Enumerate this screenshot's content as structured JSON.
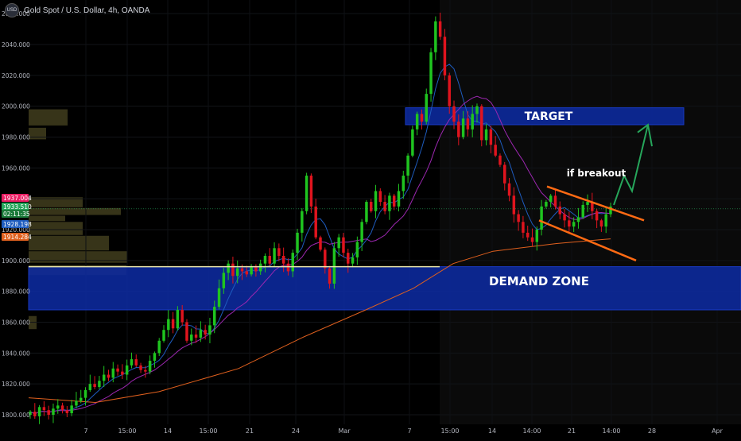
{
  "header": {
    "symbol_title": "Gold Spot / U.S. Dollar, 4h, OANDA",
    "currency_badge": "USD"
  },
  "price_labels": {
    "label_1": "1937.004",
    "label_2": "1933.510",
    "label_3": "02:11:35",
    "label_4": "1928.198",
    "label_5": "1914.284"
  },
  "colors": {
    "background": "#000000",
    "candle_up": "#1fc41f",
    "candle_down": "#e0141e",
    "ma_fast": "#1e5cbf",
    "ma_mid": "#9c27b0",
    "ma_slow": "#e0601e",
    "zone_fill": "#0d2a9c",
    "channel": "#ff6a13",
    "arrow": "#26a65b",
    "volume_profile": "#3d3a1c"
  },
  "annotations": {
    "target": "TARGET",
    "demand_zone": "DEMAND ZONE",
    "if_breakout": "if breakout"
  },
  "chart_data": {
    "type": "candlestick",
    "title": "Gold Spot / U.S. Dollar, 4h, OANDA",
    "ylim": [
      1795,
      2065
    ],
    "y_ticks": [
      1800,
      1820,
      1840,
      1860,
      1880,
      1900,
      1920,
      1940,
      1960,
      1980,
      2000,
      2020,
      2040,
      2060
    ],
    "y_tick_labels": [
      "1800.000",
      "1820.000",
      "1840.000",
      "1860.000",
      "1880.000",
      "1900.000",
      "1920.000",
      "1940.000",
      "1960.000",
      "1980.000",
      "2000.000",
      "2020.000",
      "2040.000",
      "2060.000"
    ],
    "x_tick_labels": [
      "7",
      "15:00",
      "14",
      "15:00",
      "21",
      "24",
      "Mar",
      "7",
      "15:00",
      "14",
      "14:00",
      "21",
      "14:00",
      "28",
      "Apr"
    ],
    "zones": [
      {
        "name": "TARGET",
        "from": 1988,
        "to": 1999
      },
      {
        "name": "DEMAND ZONE",
        "from": 1868,
        "to": 1896
      }
    ],
    "horizontal_level": 1896,
    "current_price": 1933.5,
    "price_axis_labels": [
      {
        "value": 1937.004,
        "label": "1937.004",
        "color": "#e91e63"
      },
      {
        "value": 1933.51,
        "label": "1933.510",
        "color": "#26a65b"
      },
      {
        "value": 1928.198,
        "label": "1928.198",
        "color": "#1e5cbf"
      },
      {
        "value": 1914.284,
        "label": "1914.284",
        "color": "#e0601e"
      }
    ],
    "closes": [
      1802,
      1799,
      1805,
      1803,
      1800,
      1804,
      1806,
      1803,
      1801,
      1806,
      1809,
      1811,
      1816,
      1820,
      1818,
      1822,
      1826,
      1824,
      1830,
      1828,
      1826,
      1832,
      1836,
      1832,
      1829,
      1828,
      1835,
      1840,
      1848,
      1855,
      1862,
      1856,
      1868,
      1860,
      1848,
      1852,
      1850,
      1855,
      1852,
      1858,
      1870,
      1882,
      1892,
      1898,
      1890,
      1895,
      1893,
      1891,
      1896,
      1893,
      1898,
      1903,
      1898,
      1908,
      1903,
      1898,
      1893,
      1905,
      1918,
      1932,
      1955,
      1935,
      1915,
      1907,
      1895,
      1885,
      1908,
      1915,
      1905,
      1898,
      1902,
      1912,
      1925,
      1938,
      1932,
      1945,
      1938,
      1932,
      1942,
      1935,
      1945,
      1955,
      1968,
      1985,
      1995,
      1990,
      2008,
      2035,
      2055,
      2045,
      2020,
      2000,
      1990,
      1980,
      1992,
      1985,
      1995,
      2000,
      1978,
      1985,
      1975,
      1968,
      1962,
      1950,
      1942,
      1930,
      1925,
      1918,
      1915,
      1912,
      1920,
      1935,
      1938,
      1942,
      1935,
      1930,
      1926,
      1922,
      1925,
      1928,
      1936,
      1938,
      1932,
      1926,
      1922,
      1930,
      1935
    ]
  }
}
